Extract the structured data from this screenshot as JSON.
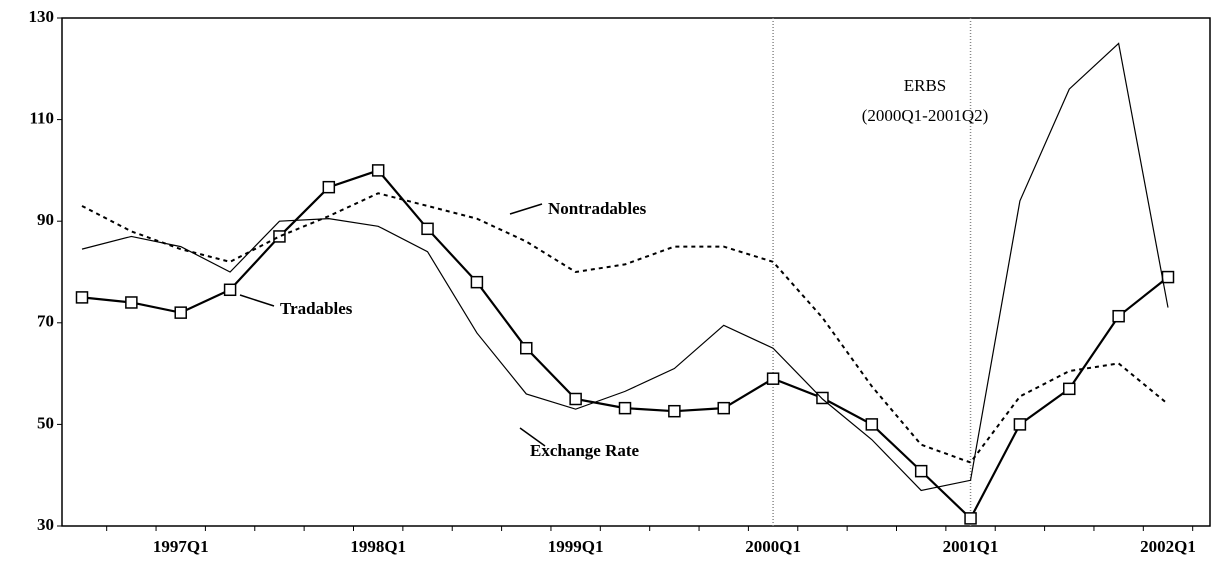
{
  "chart_data": {
    "type": "line",
    "categories": [
      null,
      null,
      "1997Q1",
      null,
      null,
      null,
      "1998Q1",
      null,
      null,
      null,
      "1999Q1",
      null,
      null,
      null,
      "2000Q1",
      null,
      null,
      null,
      "2001Q1",
      null,
      null,
      null,
      "2002Q1"
    ],
    "series": [
      {
        "name": "Tradables",
        "color": "#000000",
        "style": "solid",
        "marker": "square",
        "values": [
          75,
          74,
          72,
          76.5,
          87,
          96.7,
          100,
          88.5,
          78,
          65,
          55,
          53.2,
          52.6,
          53.2,
          59,
          55.2,
          50,
          40.8,
          31.5,
          50,
          57,
          71.3,
          79
        ]
      },
      {
        "name": "Exchange Rate",
        "color": "#000000",
        "style": "thin",
        "values": [
          84.5,
          87,
          85,
          80,
          90,
          90.5,
          89,
          84,
          68,
          56,
          53,
          56.5,
          61,
          69.5,
          65,
          55,
          47,
          37,
          39,
          94,
          116,
          125,
          73
        ]
      },
      {
        "name": "Nontradables",
        "color": "#000000",
        "style": "dashed",
        "values": [
          93,
          88,
          84.5,
          82,
          87,
          91,
          95.5,
          93,
          90.5,
          86,
          80,
          81.5,
          85,
          85,
          82,
          71,
          57.5,
          46,
          42.5,
          55.5,
          60.5,
          62,
          54
        ]
      }
    ],
    "vlines": [
      "2000Q1",
      "2001Q1"
    ],
    "annotations": [
      "ERBS",
      "(2000Q1-2001Q2)"
    ],
    "ylim": [
      30,
      130
    ],
    "yticks": [
      30,
      50,
      70,
      90,
      110,
      130
    ],
    "grid": false
  }
}
